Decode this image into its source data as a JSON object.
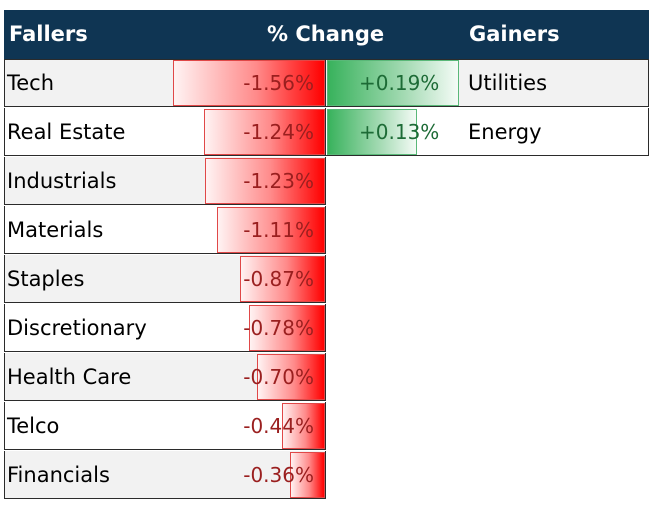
{
  "header": {
    "fallers": "Fallers",
    "change": "% Change",
    "gainers": "Gainers"
  },
  "colors": {
    "header_bg": "#0f3553",
    "negative_bar": "#ff0000",
    "positive_bar": "#38b25c",
    "negative_text": "#9a1f1f",
    "positive_text": "#1d6b36"
  },
  "chart_data": {
    "type": "bar",
    "orientation": "horizontal",
    "title": "",
    "xlabel": "",
    "ylabel": "",
    "fallers": {
      "categories": [
        "Tech",
        "Real Estate",
        "Industrials",
        "Materials",
        "Staples",
        "Discretionary",
        "Health Care",
        "Telco",
        "Financials"
      ],
      "values": [
        -1.56,
        -1.24,
        -1.23,
        -1.11,
        -0.87,
        -0.78,
        -0.7,
        -0.44,
        -0.36
      ],
      "labels": [
        "-1.56%",
        "-1.24%",
        "-1.23%",
        "-1.11%",
        "-0.87%",
        "-0.78%",
        "-0.70%",
        "-0.44%",
        "-0.36%"
      ]
    },
    "gainers": {
      "categories": [
        "Utilities",
        "Energy"
      ],
      "values": [
        0.19,
        0.13
      ],
      "labels": [
        "+0.19%",
        "+0.13%"
      ]
    }
  }
}
